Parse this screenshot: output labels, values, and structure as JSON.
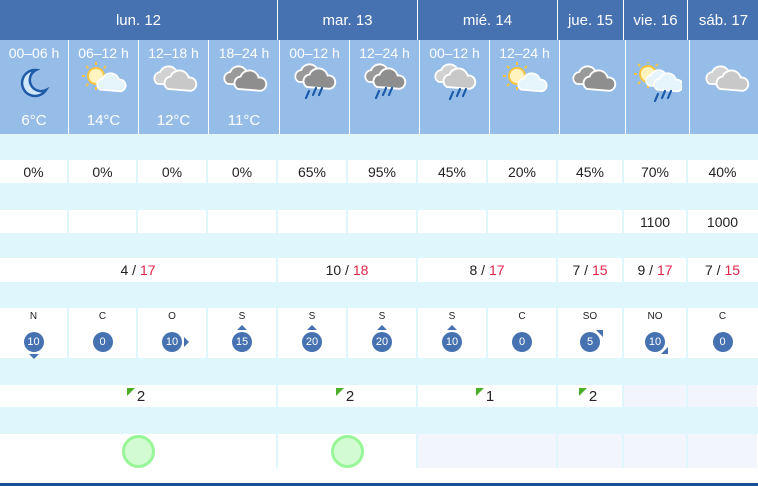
{
  "days": [
    "lun. 12",
    "mar. 13",
    "mié. 14",
    "jue. 15",
    "vie. 16",
    "sáb. 17"
  ],
  "periods": [
    {
      "label": "00–06 h",
      "icon": "moon",
      "temp": "6°C"
    },
    {
      "label": "06–12 h",
      "icon": "sun-cloud",
      "temp": "14°C"
    },
    {
      "label": "12–18 h",
      "icon": "cloud-light",
      "temp": "12°C"
    },
    {
      "label": "18–24 h",
      "icon": "cloud-dark",
      "temp": "11°C"
    },
    {
      "label": "00–12 h",
      "icon": "cloud-heavy-rain",
      "temp": ""
    },
    {
      "label": "12–24 h",
      "icon": "cloud-heavy-rain",
      "temp": ""
    },
    {
      "label": "00–12 h",
      "icon": "cloud-rain",
      "temp": ""
    },
    {
      "label": "12–24 h",
      "icon": "sun-cloud",
      "temp": ""
    },
    {
      "label": "",
      "icon": "cloud-dark",
      "temp": ""
    },
    {
      "label": "",
      "icon": "sun-cloud-rain",
      "temp": ""
    },
    {
      "label": "",
      "icon": "cloud-light",
      "temp": ""
    }
  ],
  "precip": [
    "0%",
    "0%",
    "0%",
    "0%",
    "65%",
    "95%",
    "45%",
    "20%",
    "45%",
    "70%",
    "40%"
  ],
  "snow": [
    "",
    "",
    "",
    "",
    "",
    "",
    "",
    "",
    "",
    "1100",
    "1000"
  ],
  "temps": [
    {
      "min": "4",
      "max": "17"
    },
    {
      "min": "10",
      "max": "18"
    },
    {
      "min": "8",
      "max": "17"
    },
    {
      "min": "7",
      "max": "15"
    },
    {
      "min": "9",
      "max": "17"
    },
    {
      "min": "7",
      "max": "15"
    }
  ],
  "wind": [
    {
      "dir": "N",
      "speed": "10",
      "arrow": "down"
    },
    {
      "dir": "C",
      "speed": "0",
      "arrow": ""
    },
    {
      "dir": "O",
      "speed": "10",
      "arrow": "right"
    },
    {
      "dir": "S",
      "speed": "15",
      "arrow": "up"
    },
    {
      "dir": "S",
      "speed": "20",
      "arrow": "up"
    },
    {
      "dir": "S",
      "speed": "20",
      "arrow": "up"
    },
    {
      "dir": "S",
      "speed": "10",
      "arrow": "up"
    },
    {
      "dir": "C",
      "speed": "0",
      "arrow": ""
    },
    {
      "dir": "SO",
      "speed": "5",
      "arrow": "ne"
    },
    {
      "dir": "NO",
      "speed": "10",
      "arrow": "se"
    },
    {
      "dir": "C",
      "speed": "0",
      "arrow": ""
    }
  ],
  "uv": [
    "2",
    "2",
    "1",
    "2",
    "",
    ""
  ],
  "air_quality": [
    true,
    true,
    false,
    false,
    false,
    false
  ],
  "colors": {
    "header": "#4672b1",
    "subheader": "#96bde8",
    "row_gap": "#dff6fd",
    "max_temp": "#e0254a",
    "uv_marker": "#4caf28",
    "air_good": "#98f598"
  }
}
